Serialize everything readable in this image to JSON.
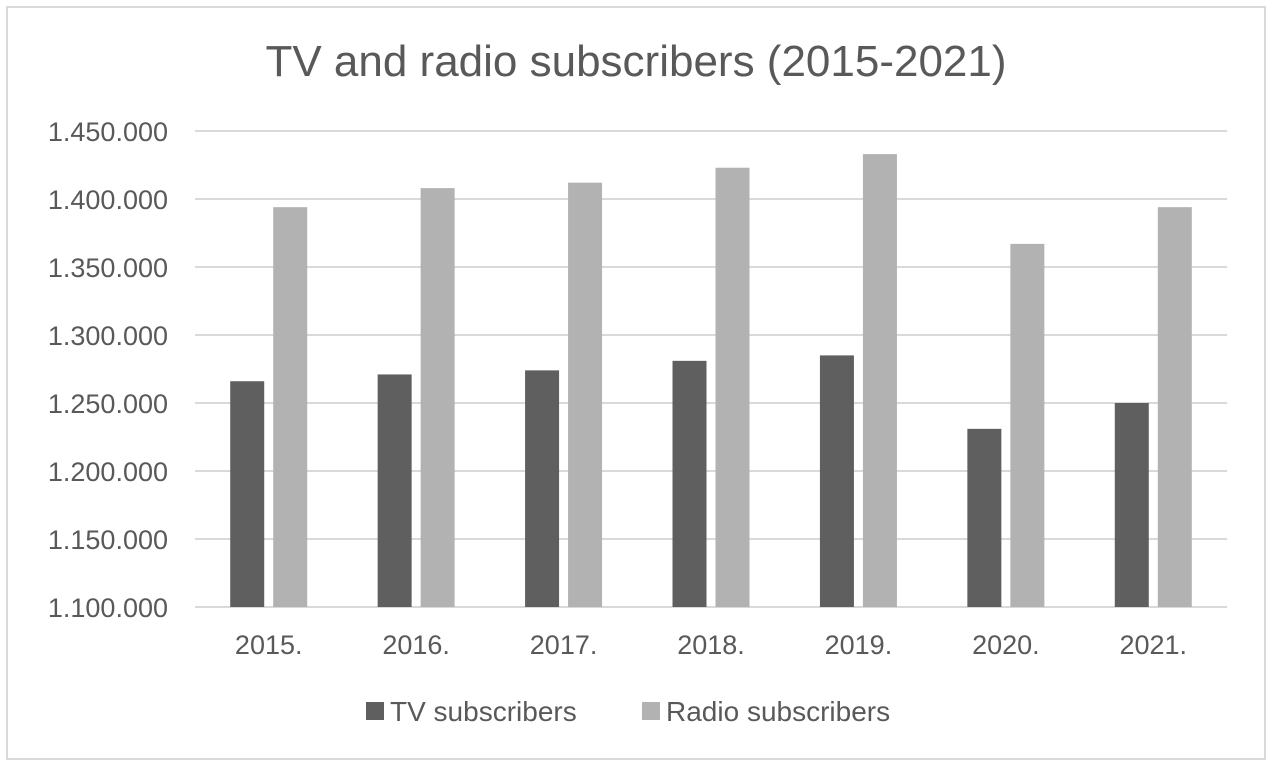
{
  "chart_data": {
    "type": "bar",
    "title": "TV and radio subscribers (2015-2021)",
    "xlabel": "",
    "ylabel": "",
    "categories": [
      "2015.",
      "2016.",
      "2017.",
      "2018.",
      "2019.",
      "2020.",
      "2021."
    ],
    "series": [
      {
        "name": "TV subscribers",
        "color": "#5f5f5f",
        "values": [
          1266000,
          1271000,
          1274000,
          1281000,
          1285000,
          1231000,
          1250000
        ]
      },
      {
        "name": "Radio subscribers",
        "color": "#b2b2b2",
        "values": [
          1394000,
          1408000,
          1412000,
          1423000,
          1433000,
          1367000,
          1394000
        ]
      }
    ],
    "ylim": [
      1100000,
      1450000
    ],
    "yticks": [
      1100000,
      1150000,
      1200000,
      1250000,
      1300000,
      1350000,
      1400000,
      1450000
    ],
    "ytick_labels": [
      "1.100.000",
      "1.150.000",
      "1.200.000",
      "1.250.000",
      "1.300.000",
      "1.350.000",
      "1.400.000",
      "1.450.000"
    ],
    "grid": true,
    "gridColor": "#d9d9d9",
    "legend_position": "bottom"
  }
}
